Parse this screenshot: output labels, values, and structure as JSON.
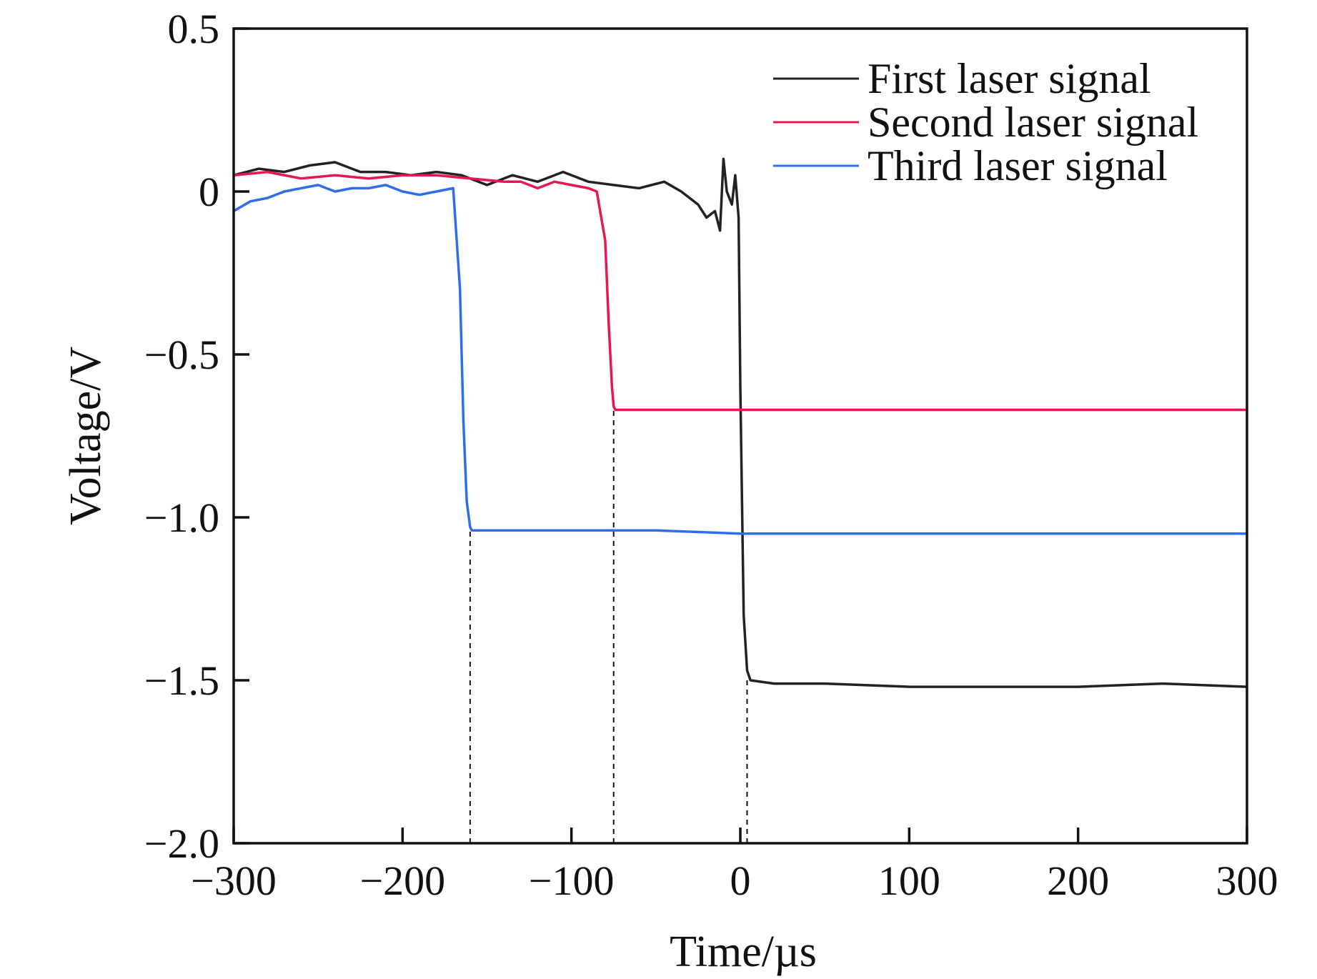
{
  "chart_data": {
    "type": "line",
    "title": "",
    "xlabel": "Time/µs",
    "ylabel": "Voltage/V",
    "xlim": [
      -300,
      300
    ],
    "ylim": [
      -2.0,
      0.5
    ],
    "xticks": [
      -300,
      -200,
      -100,
      0,
      100,
      200,
      300
    ],
    "xtick_labels": [
      "−300",
      "−200",
      "−100",
      "0",
      "100",
      "200",
      "300"
    ],
    "yticks": [
      0.5,
      0,
      -0.5,
      -1.0,
      -1.5,
      -2.0
    ],
    "ytick_labels": [
      "0.5",
      "0",
      "−0.5",
      "−1.0",
      "−1.5",
      "−2.0"
    ],
    "grid": false,
    "legend_position": "top-right",
    "series": [
      {
        "name": "First laser signal",
        "color": "#222222",
        "x": [
          -300,
          -285,
          -270,
          -255,
          -240,
          -225,
          -210,
          -195,
          -180,
          -165,
          -150,
          -135,
          -120,
          -105,
          -90,
          -75,
          -60,
          -45,
          -35,
          -25,
          -20,
          -15,
          -12,
          -10,
          -8,
          -5,
          -3,
          -1,
          0,
          2,
          4,
          6,
          20,
          50,
          100,
          150,
          200,
          250,
          300
        ],
        "y": [
          0.05,
          0.07,
          0.06,
          0.08,
          0.09,
          0.06,
          0.06,
          0.05,
          0.06,
          0.05,
          0.02,
          0.05,
          0.03,
          0.06,
          0.03,
          0.02,
          0.01,
          0.03,
          0.0,
          -0.04,
          -0.08,
          -0.06,
          -0.12,
          0.1,
          0.0,
          -0.04,
          0.05,
          -0.08,
          -0.6,
          -1.3,
          -1.47,
          -1.5,
          -1.51,
          -1.51,
          -1.52,
          -1.52,
          -1.52,
          -1.51,
          -1.52
        ]
      },
      {
        "name": "Second laser signal",
        "color": "#e8184e",
        "x": [
          -300,
          -280,
          -260,
          -240,
          -220,
          -200,
          -180,
          -160,
          -140,
          -130,
          -120,
          -110,
          -100,
          -90,
          -85,
          -80,
          -78,
          -76,
          -75,
          -74,
          -60,
          -40,
          -20,
          0,
          50,
          100,
          150,
          200,
          250,
          300
        ],
        "y": [
          0.05,
          0.06,
          0.04,
          0.05,
          0.04,
          0.05,
          0.05,
          0.04,
          0.03,
          0.03,
          0.01,
          0.03,
          0.02,
          0.01,
          0.0,
          -0.15,
          -0.4,
          -0.6,
          -0.66,
          -0.67,
          -0.67,
          -0.67,
          -0.67,
          -0.67,
          -0.67,
          -0.67,
          -0.67,
          -0.67,
          -0.67,
          -0.67
        ]
      },
      {
        "name": "Third laser signal",
        "color": "#2f6ee8",
        "x": [
          -300,
          -290,
          -280,
          -270,
          -260,
          -250,
          -240,
          -230,
          -220,
          -210,
          -200,
          -190,
          -180,
          -170,
          -166,
          -164,
          -162,
          -160,
          -159,
          -150,
          -120,
          -100,
          -50,
          0,
          50,
          100,
          150,
          200,
          250,
          300
        ],
        "y": [
          -0.06,
          -0.03,
          -0.02,
          0.0,
          0.01,
          0.02,
          0.0,
          0.01,
          0.01,
          0.02,
          0.0,
          -0.01,
          0.0,
          0.01,
          -0.3,
          -0.7,
          -0.95,
          -1.03,
          -1.04,
          -1.04,
          -1.04,
          -1.04,
          -1.04,
          -1.05,
          -1.05,
          -1.05,
          -1.05,
          -1.05,
          -1.05,
          -1.05
        ]
      }
    ],
    "reference_lines": [
      {
        "x": -160,
        "y_from": -2.0,
        "y_to": -1.04,
        "style": "dashed"
      },
      {
        "x": -75,
        "y_from": -2.0,
        "y_to": -0.67,
        "style": "dashed"
      },
      {
        "x": 4,
        "y_from": -2.0,
        "y_to": -1.5,
        "style": "dashed"
      }
    ]
  }
}
